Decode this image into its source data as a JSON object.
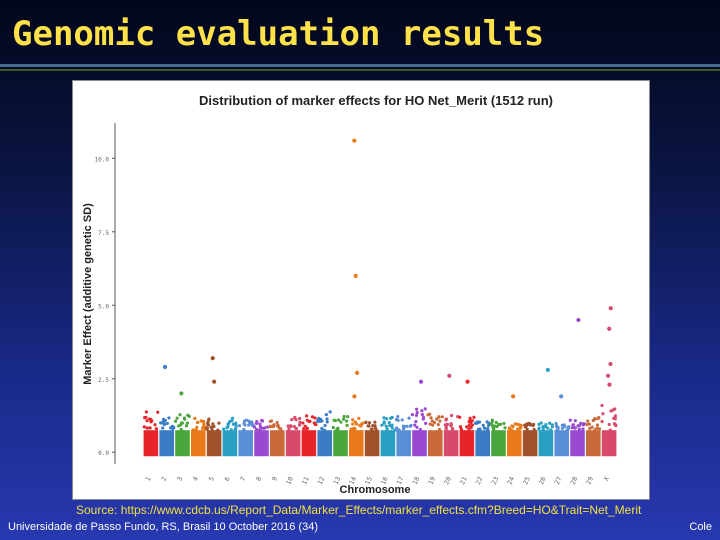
{
  "slide": {
    "title": "Genomic evaluation results",
    "source": "Source: https://www.cdcb.us/Report_Data/Marker_Effects/marker_effects.cfm?Breed=HO&Trait=Net_Merit",
    "footer_left": "Universidade de Passo Fundo, RS, Brasil 10 October 2016 (34)",
    "footer_right": "Cole"
  },
  "colors": {
    "title": "#ffe14a",
    "source": "#f0e040",
    "chromosome_palette": [
      "#e8242a",
      "#3a7dc4",
      "#4aa63c",
      "#e87a1a",
      "#a0522d",
      "#2a9fc4",
      "#5a8fd8",
      "#9a4ad0",
      "#c86a3a",
      "#d84a6a"
    ]
  },
  "chart_data": {
    "type": "scatter",
    "title": "Distribution of marker effects for HO Net_Merit (1512 run)",
    "xlabel": "Chromosome",
    "ylabel": "Marker Effect (additive genetic SD)",
    "ylim": [
      -0.4,
      11.2
    ],
    "yticks": [
      0.0,
      2.5,
      5.0,
      7.5,
      10.0
    ],
    "ytick_labels": [
      "0.0",
      "2.5",
      "5.0",
      "7.5",
      "10.0"
    ],
    "grid": false,
    "categories": [
      "1",
      "2",
      "3",
      "4",
      "5",
      "6",
      "7",
      "8",
      "9",
      "10",
      "11",
      "12",
      "13",
      "14",
      "15",
      "16",
      "17",
      "18",
      "19",
      "20",
      "21",
      "22",
      "23",
      "24",
      "25",
      "26",
      "27",
      "28",
      "29",
      "X"
    ],
    "chromosome_base_max": [
      1.4,
      1.3,
      1.3,
      1.2,
      1.2,
      1.2,
      1.1,
      1.1,
      1.1,
      1.2,
      1.3,
      1.4,
      1.3,
      1.2,
      1.1,
      1.2,
      1.3,
      1.5,
      1.3,
      1.3,
      1.2,
      1.1,
      1.1,
      1.0,
      1.0,
      1.0,
      1.0,
      1.1,
      1.2,
      1.6
    ],
    "notable_points": [
      {
        "chromosome": "2",
        "value": 2.9
      },
      {
        "chromosome": "3",
        "value": 2.0
      },
      {
        "chromosome": "5",
        "value": 3.2
      },
      {
        "chromosome": "5",
        "value": 2.4
      },
      {
        "chromosome": "14",
        "value": 10.6
      },
      {
        "chromosome": "14",
        "value": 6.0
      },
      {
        "chromosome": "14",
        "value": 2.7
      },
      {
        "chromosome": "14",
        "value": 1.9
      },
      {
        "chromosome": "18",
        "value": 2.4
      },
      {
        "chromosome": "20",
        "value": 2.6
      },
      {
        "chromosome": "21",
        "value": 2.4
      },
      {
        "chromosome": "24",
        "value": 1.9
      },
      {
        "chromosome": "26",
        "value": 2.8
      },
      {
        "chromosome": "27",
        "value": 1.9
      },
      {
        "chromosome": "28",
        "value": 4.5
      },
      {
        "chromosome": "X",
        "value": 4.9
      },
      {
        "chromosome": "X",
        "value": 4.2
      },
      {
        "chromosome": "X",
        "value": 3.0
      },
      {
        "chromosome": "X",
        "value": 2.6
      },
      {
        "chromosome": "X",
        "value": 2.3
      }
    ]
  }
}
